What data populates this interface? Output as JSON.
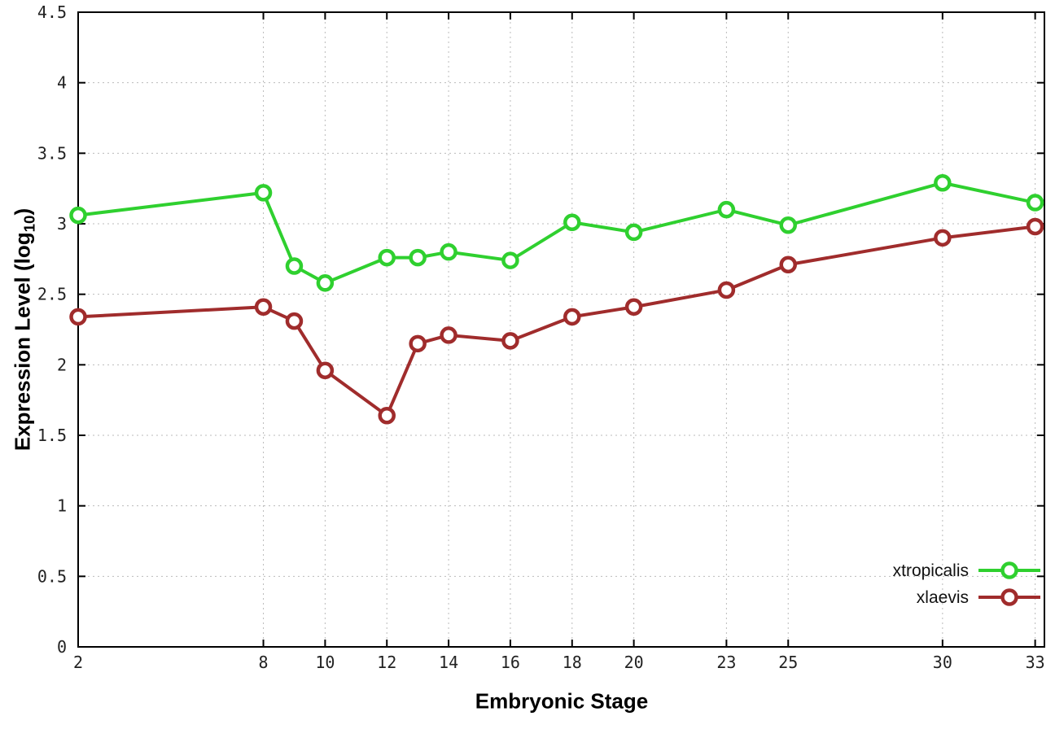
{
  "chart_data": {
    "type": "line",
    "title": "",
    "xlabel": "Embryonic Stage",
    "ylabel_prefix": "Expression Level (log",
    "ylabel_sub": "10",
    "ylabel_suffix": ")",
    "x": [
      2,
      8,
      9,
      10,
      12,
      13,
      14,
      16,
      18,
      20,
      23,
      25,
      30,
      33
    ],
    "xticks": [
      2,
      8,
      10,
      12,
      14,
      16,
      18,
      20,
      23,
      25,
      30,
      33
    ],
    "yticks": [
      0,
      0.5,
      1,
      1.5,
      2,
      2.5,
      3,
      3.5,
      4,
      4.5
    ],
    "xlim": [
      2,
      33.3
    ],
    "ylim": [
      0,
      4.5
    ],
    "grid": true,
    "legend_position": "bottom-right",
    "series": [
      {
        "name": "xtropicalis",
        "color": "#2fd02f",
        "values": [
          3.06,
          3.22,
          2.7,
          2.58,
          2.76,
          2.76,
          2.8,
          2.74,
          3.01,
          2.94,
          3.1,
          2.99,
          3.29,
          3.15
        ]
      },
      {
        "name": "xlaevis",
        "color": "#a02c2c",
        "values": [
          2.34,
          2.41,
          2.31,
          1.96,
          1.64,
          2.15,
          2.21,
          2.17,
          2.34,
          2.41,
          2.53,
          2.71,
          2.9,
          2.98
        ]
      }
    ],
    "colors": {
      "grid": "#bbbbbb",
      "border": "#000000",
      "marker_fill": "#ffffff"
    }
  }
}
